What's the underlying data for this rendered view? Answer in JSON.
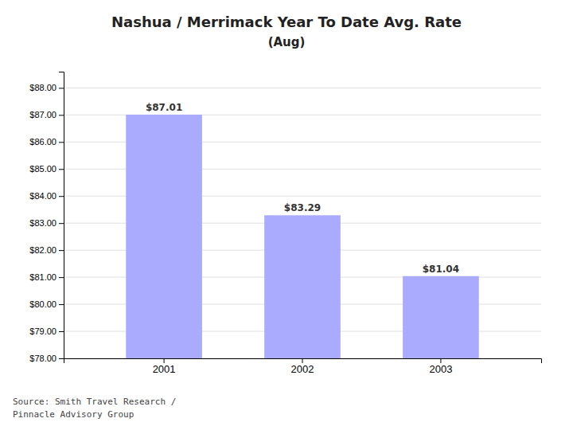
{
  "chart_data": {
    "type": "bar",
    "title": "Nashua / Merrimack Year To Date Avg. Rate",
    "subtitle": "(Aug)",
    "categories": [
      "2001",
      "2002",
      "2003"
    ],
    "values": [
      87.01,
      83.29,
      81.04
    ],
    "value_labels": [
      "$87.01",
      "$83.29",
      "$81.04"
    ],
    "data_labels": true,
    "color": "#aaaaff",
    "ylim": [
      78.0,
      88.6
    ],
    "yticks": [
      {
        "value": 78.0,
        "label": "$78.00"
      },
      {
        "value": 79.0,
        "label": "$79.00"
      },
      {
        "value": 80.0,
        "label": "$80.00"
      },
      {
        "value": 81.0,
        "label": "$81.00"
      },
      {
        "value": 82.0,
        "label": "$82.00"
      },
      {
        "value": 83.0,
        "label": "$83.00"
      },
      {
        "value": 84.0,
        "label": "$84.00"
      },
      {
        "value": 85.0,
        "label": "$85.00"
      },
      {
        "value": 86.0,
        "label": "$86.00"
      },
      {
        "value": 87.0,
        "label": "$87.00"
      },
      {
        "value": 88.0,
        "label": "$88.00"
      }
    ],
    "grid": true,
    "annotations": [
      "Source: Smith Travel Research /\nPinnacle Advisory Group"
    ]
  }
}
